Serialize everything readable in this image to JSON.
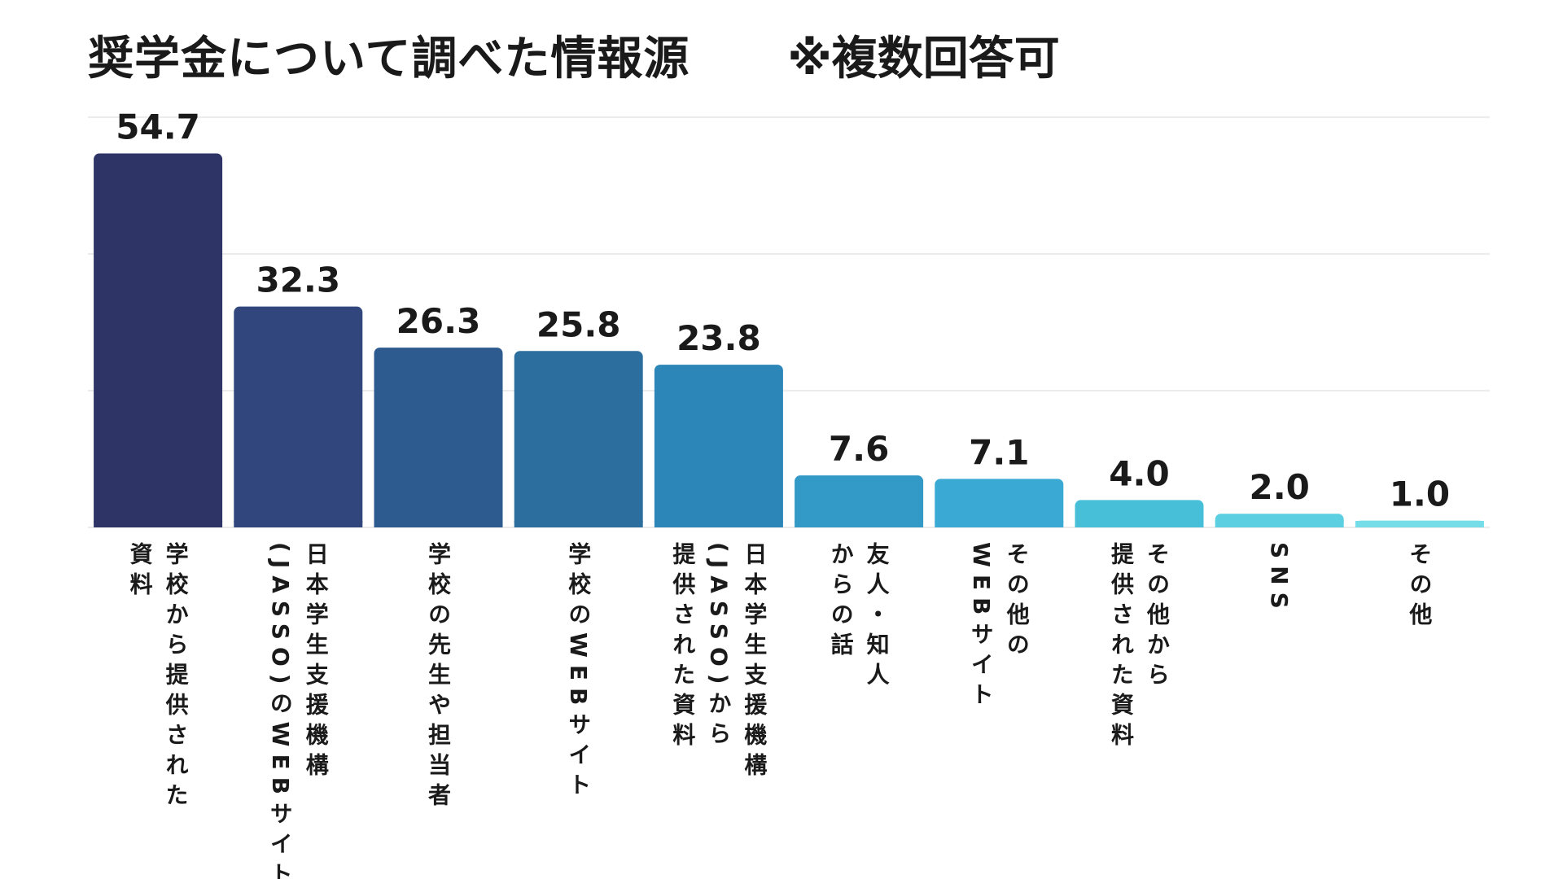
{
  "chart_data": {
    "type": "bar",
    "title": "奨学金について調べた情報源",
    "subtitle": "※複数回答可",
    "categories": [
      [
        "学校から提供された",
        "資料"
      ],
      [
        "日本学生支援機構",
        "(JASSO)のWEBサイト"
      ],
      [
        "学校の先生や担当者"
      ],
      [
        "学校のWEBサイト"
      ],
      [
        "日本学生支援機構",
        "(JASSO)から",
        "提供された資料"
      ],
      [
        "友人・知人",
        "からの話"
      ],
      [
        "その他の",
        "WEBサイト"
      ],
      [
        "その他から",
        "提供された資料"
      ],
      [
        "SNS"
      ],
      [
        "その他"
      ]
    ],
    "values": [
      54.7,
      32.3,
      26.3,
      25.8,
      23.8,
      7.6,
      7.1,
      4.0,
      2.0,
      1.0
    ],
    "value_labels": [
      "54.7",
      "32.3",
      "26.3",
      "25.8",
      "23.8",
      "7.6",
      "7.1",
      "4.0",
      "2.0",
      "1.0"
    ],
    "ylim": [
      0,
      60
    ],
    "grid": true,
    "colors": [
      "#2e3466",
      "#31467c",
      "#2d5a8f",
      "#2c6e9e",
      "#2d86b8",
      "#3399c7",
      "#3aa9d4",
      "#48bfd9",
      "#5cd0e0",
      "#74dde8"
    ]
  }
}
